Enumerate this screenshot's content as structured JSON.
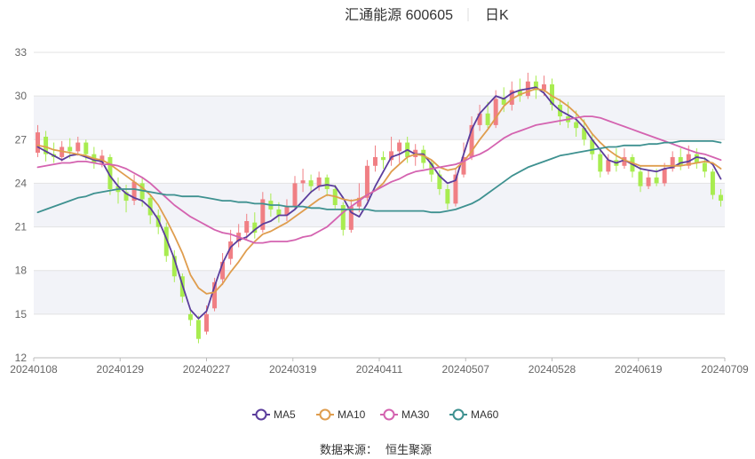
{
  "chart_data": {
    "type": "candlestick",
    "title": "汇通能源 600605",
    "subtitle": "日K",
    "source_label": "数据来源：",
    "source_name": "恒生聚源",
    "y_ticks": [
      12,
      15,
      18,
      21,
      24,
      27,
      30,
      33
    ],
    "ylim": [
      12,
      33
    ],
    "x_tick_labels": [
      "20240108",
      "20240129",
      "20240227",
      "20240319",
      "20240411",
      "20240507",
      "20240528",
      "20240619",
      "20240709"
    ],
    "legend_position": "bottom-center",
    "grid": true,
    "colors": {
      "up": "#f07f84",
      "down": "#a8ec50",
      "ma5": "#5b3d9c",
      "ma10": "#df9d4e",
      "ma30": "#d463b0",
      "ma60": "#3e9190",
      "band": "#f2f3f8"
    },
    "series": [
      {
        "name": "MA5",
        "color": "#5b3d9c",
        "values": [
          26.5,
          26.2,
          25.9,
          25.6,
          25.9,
          26.0,
          25.8,
          25.6,
          25.5,
          24.5,
          23.8,
          23.3,
          23.0,
          22.8,
          22.3,
          21.5,
          20.2,
          18.8,
          17.0,
          15.3,
          14.7,
          15.2,
          16.9,
          18.5,
          19.6,
          20.1,
          20.3,
          20.8,
          21.2,
          21.4,
          21.8,
          21.8,
          22.2,
          22.8,
          23.4,
          23.8,
          23.9,
          23.8,
          23.0,
          22.0,
          21.7,
          22.6,
          23.8,
          24.8,
          25.8,
          26.0,
          26.3,
          26.0,
          26.0,
          25.3,
          24.5,
          24.0,
          24.2,
          26.0,
          27.7,
          28.8,
          29.4,
          30.0,
          29.8,
          30.2,
          30.4,
          30.5,
          30.6,
          30.2,
          29.5,
          29.0,
          28.7,
          28.4,
          27.8,
          27.0,
          26.3,
          25.6,
          25.4,
          25.6,
          25.3,
          25.0,
          24.9,
          24.8,
          25.0,
          25.1,
          25.4,
          25.5,
          25.8,
          25.7,
          25.3,
          24.3
        ]
      },
      {
        "name": "MA10",
        "color": "#df9d4e",
        "values": [
          26.6,
          26.5,
          26.3,
          26.2,
          26.1,
          26.0,
          25.9,
          25.7,
          25.6,
          25.3,
          24.9,
          24.5,
          24.1,
          23.7,
          23.2,
          22.5,
          21.5,
          20.4,
          19.2,
          17.7,
          16.8,
          16.4,
          16.5,
          17.1,
          17.9,
          18.6,
          19.4,
          20.0,
          20.5,
          20.7,
          21.0,
          21.3,
          21.7,
          22.1,
          22.5,
          22.9,
          23.2,
          23.1,
          22.9,
          22.8,
          22.9,
          23.2,
          23.5,
          24.0,
          24.8,
          25.3,
          25.8,
          26.0,
          25.9,
          25.6,
          25.1,
          24.9,
          25.0,
          25.5,
          26.2,
          27.0,
          27.7,
          28.5,
          29.3,
          29.8,
          30.1,
          30.3,
          30.5,
          30.4,
          30.0,
          29.7,
          29.3,
          28.8,
          28.2,
          27.4,
          26.8,
          26.3,
          25.9,
          25.6,
          25.4,
          25.2,
          25.2,
          25.2,
          25.2,
          25.2,
          25.2,
          25.3,
          25.4,
          25.5,
          25.4,
          25.0
        ]
      },
      {
        "name": "MA30",
        "color": "#d463b0",
        "values": [
          25.1,
          25.2,
          25.3,
          25.4,
          25.4,
          25.5,
          25.5,
          25.4,
          25.3,
          25.3,
          25.2,
          25.0,
          24.7,
          24.4,
          24.0,
          23.5,
          23.0,
          22.5,
          22.1,
          21.7,
          21.4,
          21.1,
          20.8,
          20.6,
          20.5,
          20.3,
          20.1,
          19.9,
          19.9,
          20.0,
          20.0,
          20.0,
          20.1,
          20.3,
          20.4,
          20.7,
          21.0,
          21.5,
          22.0,
          22.4,
          22.8,
          23.2,
          23.5,
          23.8,
          24.1,
          24.3,
          24.6,
          24.8,
          24.9,
          25.0,
          25.1,
          25.2,
          25.3,
          25.5,
          25.8,
          26.0,
          26.3,
          26.7,
          27.1,
          27.4,
          27.6,
          27.8,
          28.0,
          28.1,
          28.2,
          28.3,
          28.4,
          28.5,
          28.6,
          28.6,
          28.5,
          28.3,
          28.1,
          27.9,
          27.7,
          27.5,
          27.3,
          27.1,
          26.9,
          26.7,
          26.5,
          26.3,
          26.1,
          26.0,
          25.8,
          25.6
        ]
      },
      {
        "name": "MA60",
        "color": "#3e9190",
        "values": [
          22.0,
          22.2,
          22.4,
          22.6,
          22.8,
          23.0,
          23.1,
          23.3,
          23.4,
          23.5,
          23.6,
          23.6,
          23.6,
          23.5,
          23.4,
          23.3,
          23.2,
          23.2,
          23.1,
          23.1,
          23.1,
          23.0,
          22.9,
          22.8,
          22.8,
          22.7,
          22.7,
          22.6,
          22.6,
          22.5,
          22.5,
          22.4,
          22.4,
          22.4,
          22.3,
          22.3,
          22.2,
          22.2,
          22.2,
          22.2,
          22.2,
          22.2,
          22.1,
          22.1,
          22.1,
          22.1,
          22.1,
          22.1,
          22.1,
          22.0,
          22.0,
          22.1,
          22.2,
          22.4,
          22.6,
          22.9,
          23.3,
          23.7,
          24.1,
          24.5,
          24.8,
          25.1,
          25.3,
          25.5,
          25.7,
          25.9,
          26.0,
          26.1,
          26.2,
          26.3,
          26.4,
          26.5,
          26.5,
          26.6,
          26.6,
          26.6,
          26.7,
          26.7,
          26.8,
          26.8,
          26.9,
          26.9,
          26.9,
          26.9,
          26.9,
          26.8
        ]
      }
    ],
    "candles": [
      [
        26.1,
        27.5,
        28.0,
        25.8
      ],
      [
        27.2,
        26.0,
        27.6,
        25.5
      ],
      [
        26.0,
        25.8,
        26.8,
        25.4
      ],
      [
        25.8,
        26.5,
        26.9,
        25.5
      ],
      [
        26.5,
        26.2,
        27.1,
        25.7
      ],
      [
        26.2,
        26.8,
        27.2,
        25.9
      ],
      [
        26.8,
        26.0,
        27.0,
        25.6
      ],
      [
        26.0,
        25.4,
        26.5,
        25.0
      ],
      [
        25.4,
        25.9,
        26.3,
        25.1
      ],
      [
        25.8,
        23.6,
        26.0,
        23.2
      ],
      [
        23.8,
        23.4,
        24.4,
        22.6
      ],
      [
        23.4,
        22.8,
        23.9,
        22.0
      ],
      [
        22.8,
        24.1,
        24.6,
        22.5
      ],
      [
        24.0,
        22.9,
        24.4,
        22.4
      ],
      [
        23.0,
        21.8,
        23.2,
        21.2
      ],
      [
        21.8,
        21.0,
        22.2,
        20.5
      ],
      [
        21.0,
        19.0,
        21.3,
        18.6
      ],
      [
        19.0,
        17.6,
        19.4,
        17.2
      ],
      [
        17.6,
        16.2,
        17.8,
        15.8
      ],
      [
        15.0,
        14.6,
        15.4,
        14.2
      ],
      [
        14.6,
        13.3,
        14.9,
        13.0
      ],
      [
        13.8,
        15.0,
        15.6,
        13.6
      ],
      [
        15.4,
        17.2,
        17.5,
        15.2
      ],
      [
        17.4,
        18.6,
        19.2,
        17.0
      ],
      [
        18.8,
        20.0,
        20.8,
        18.4
      ],
      [
        20.0,
        20.6,
        21.2,
        19.6
      ],
      [
        20.6,
        21.4,
        21.9,
        20.1
      ],
      [
        21.3,
        20.6,
        22.0,
        20.2
      ],
      [
        20.8,
        22.9,
        23.4,
        20.6
      ],
      [
        22.8,
        22.2,
        23.3,
        21.7
      ],
      [
        22.2,
        21.8,
        22.7,
        21.3
      ],
      [
        21.8,
        22.4,
        22.9,
        21.4
      ],
      [
        22.4,
        24.0,
        24.5,
        22.2
      ],
      [
        24.0,
        24.2,
        25.0,
        23.4
      ],
      [
        24.2,
        23.8,
        24.6,
        23.3
      ],
      [
        23.8,
        24.4,
        24.8,
        23.5
      ],
      [
        24.4,
        23.6,
        24.6,
        23.1
      ],
      [
        23.6,
        22.5,
        23.9,
        22.2
      ],
      [
        22.5,
        20.8,
        22.7,
        20.4
      ],
      [
        20.8,
        22.4,
        22.9,
        20.6
      ],
      [
        22.4,
        23.0,
        24.0,
        22.0
      ],
      [
        23.0,
        25.2,
        25.6,
        22.8
      ],
      [
        25.2,
        25.8,
        26.6,
        24.8
      ],
      [
        25.8,
        25.6,
        26.2,
        25.0
      ],
      [
        25.6,
        26.2,
        27.2,
        25.2
      ],
      [
        26.2,
        26.8,
        27.0,
        25.4
      ],
      [
        26.8,
        25.8,
        27.2,
        25.4
      ],
      [
        25.8,
        26.3,
        26.7,
        25.2
      ],
      [
        26.3,
        25.4,
        26.6,
        25.0
      ],
      [
        25.4,
        24.6,
        25.6,
        24.1
      ],
      [
        24.6,
        23.6,
        24.9,
        23.2
      ],
      [
        23.6,
        22.6,
        23.9,
        22.2
      ],
      [
        22.6,
        24.6,
        25.0,
        22.4
      ],
      [
        24.6,
        25.8,
        26.8,
        24.4
      ],
      [
        25.8,
        28.0,
        28.6,
        25.6
      ],
      [
        28.0,
        28.8,
        29.4,
        27.6
      ],
      [
        28.8,
        28.0,
        29.6,
        27.8
      ],
      [
        28.0,
        29.8,
        30.4,
        27.8
      ],
      [
        29.8,
        29.4,
        30.6,
        28.9
      ],
      [
        29.4,
        30.4,
        31.0,
        29.0
      ],
      [
        30.4,
        30.0,
        31.2,
        29.6
      ],
      [
        30.0,
        31.0,
        31.6,
        29.8
      ],
      [
        31.0,
        30.4,
        31.4,
        29.8
      ],
      [
        30.4,
        30.8,
        31.4,
        30.0
      ],
      [
        30.8,
        29.4,
        31.2,
        29.0
      ],
      [
        29.4,
        28.6,
        29.8,
        28.0
      ],
      [
        28.6,
        28.2,
        29.6,
        27.8
      ],
      [
        28.2,
        27.8,
        29.0,
        27.2
      ],
      [
        27.8,
        27.0,
        28.4,
        26.6
      ],
      [
        27.0,
        26.0,
        27.4,
        25.6
      ],
      [
        26.0,
        24.8,
        26.4,
        24.4
      ],
      [
        24.8,
        25.6,
        26.0,
        24.6
      ],
      [
        25.6,
        25.2,
        26.4,
        24.8
      ],
      [
        25.2,
        25.8,
        26.4,
        25.0
      ],
      [
        25.8,
        24.8,
        26.0,
        24.4
      ],
      [
        24.8,
        23.8,
        25.2,
        23.4
      ],
      [
        23.8,
        24.4,
        24.9,
        23.6
      ],
      [
        24.4,
        24.0,
        25.0,
        23.8
      ],
      [
        24.0,
        25.0,
        25.4,
        23.8
      ],
      [
        25.0,
        25.8,
        26.2,
        24.8
      ],
      [
        25.8,
        25.2,
        26.4,
        24.9
      ],
      [
        25.2,
        26.0,
        26.6,
        25.0
      ],
      [
        26.0,
        25.4,
        26.4,
        25.0
      ],
      [
        25.4,
        24.8,
        25.8,
        24.4
      ],
      [
        24.8,
        23.2,
        25.0,
        22.9
      ],
      [
        23.2,
        22.8,
        23.6,
        22.4
      ]
    ]
  }
}
